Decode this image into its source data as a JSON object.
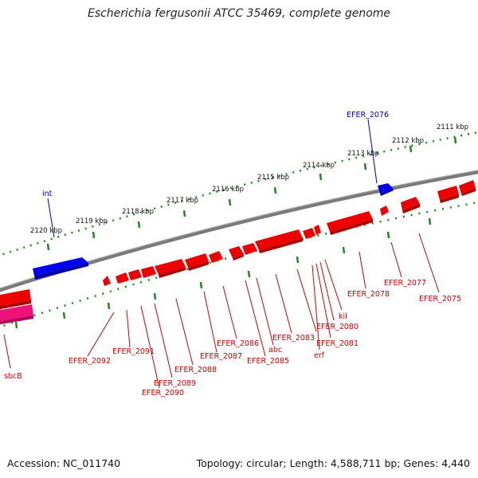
{
  "title": "Escherichia fergusonii ATCC 35469, complete genome",
  "footer": {
    "accession": "Accession: NC_011740",
    "summary": "Topology: circular; Length: 4,588,711 bp; Genes: 4,440"
  },
  "colors": {
    "gene_red": "#ee0000",
    "gene_blue": "#0000ee",
    "gene_pink": "#ee1177",
    "backbone": "#7a7a7a",
    "tick": "#228822",
    "label_red": "#cc0000",
    "label_blue": "#0000aa"
  },
  "ruler": {
    "labels": [
      "2111 kbp",
      "2112 kbp",
      "2113 kbp",
      "2114 kbp",
      "2115 kbp",
      "2116 kbp",
      "2117 kbp",
      "2118 kbp",
      "2119 kbp",
      "2120 kbp"
    ]
  },
  "labels": {
    "blue": [
      "EFER_2076",
      "int"
    ],
    "red": [
      "EFER_2075",
      "EFER_2077",
      "EFER_2078",
      "kil",
      "EFER_2080",
      "EFER_2081",
      "erf",
      "EFER_2083",
      "abc",
      "EFER_2085",
      "EFER_2086",
      "EFER_2087",
      "EFER_2088",
      "EFER_2089",
      "EFER_2090",
      "EFER_2091",
      "EFER_2092",
      "sbcB"
    ]
  }
}
